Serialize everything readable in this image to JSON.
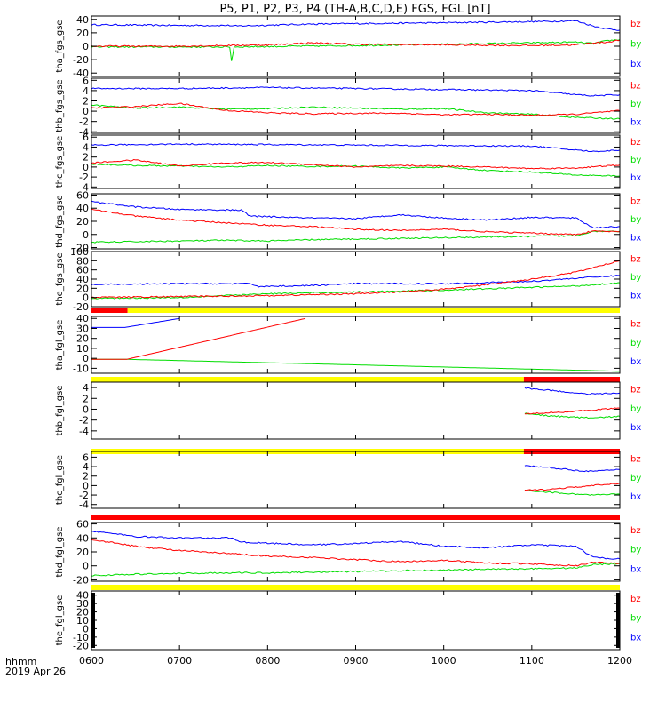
{
  "title": "P5, P1, P2, P3, P4 (TH-A,B,C,D,E) FGS, FGL [nT]",
  "footer": {
    "line1": "hhmm",
    "line2": "2019 Apr 26"
  },
  "colors": {
    "bx": "#0000ff",
    "by": "#00dd00",
    "bz": "#ff0000",
    "bar_yellow": "#ffff00",
    "bar_red": "#ff0000",
    "bar_black": "#000000"
  },
  "chart_data": [
    {
      "type": "line",
      "ylabel": "tha_fgs_gse",
      "ylim": [
        -45,
        45
      ],
      "yticks": [
        -40,
        -20,
        0,
        20,
        40
      ],
      "legend": [
        "bz",
        "by",
        "bx"
      ],
      "series": [
        {
          "name": "bx",
          "x": [
            600,
            700,
            757,
            760,
            850,
            1000,
            1120,
            1150,
            1160,
            1170,
            1185,
            1200
          ],
          "values": [
            32,
            31,
            31,
            30,
            33,
            35,
            37,
            38,
            34,
            30,
            26,
            24
          ]
        },
        {
          "name": "by",
          "x": [
            600,
            700,
            757,
            759,
            762,
            900,
            1000,
            1100,
            1150,
            1170,
            1185,
            1200
          ],
          "values": [
            -1,
            -1,
            -1,
            -22,
            -1,
            1,
            3,
            5,
            6,
            4,
            8,
            10
          ]
        },
        {
          "name": "bz",
          "x": [
            600,
            700,
            800,
            850,
            900,
            1000,
            1100,
            1150,
            1170,
            1185,
            1200
          ],
          "values": [
            0,
            0,
            2,
            5,
            3,
            2,
            1,
            2,
            5,
            6,
            9
          ]
        }
      ]
    },
    {
      "type": "line",
      "ylabel": "thb_fgs_gse",
      "ylim": [
        -4.3,
        6.4
      ],
      "yticks": [
        -4,
        -2,
        0,
        2,
        4,
        6
      ],
      "legend": [
        "bz",
        "by",
        "bx"
      ],
      "series": [
        {
          "name": "bx",
          "x": [
            600,
            700,
            800,
            900,
            1000,
            1100,
            1150,
            1170,
            1200
          ],
          "values": [
            4.4,
            4.4,
            4.6,
            4.4,
            4.2,
            4.0,
            3.2,
            3.0,
            3.2
          ]
        },
        {
          "name": "by",
          "x": [
            600,
            650,
            700,
            750,
            800,
            850,
            900,
            950,
            1000,
            1050,
            1100,
            1150,
            1200
          ],
          "values": [
            1.2,
            0.6,
            0.8,
            0.4,
            0.5,
            0.8,
            0.6,
            0.4,
            0.5,
            -0.3,
            -0.6,
            -1.2,
            -1.5
          ]
        },
        {
          "name": "bz",
          "x": [
            600,
            650,
            700,
            750,
            800,
            850,
            900,
            950,
            1000,
            1050,
            1100,
            1150,
            1200
          ],
          "values": [
            0.6,
            0.9,
            1.5,
            0.2,
            -0.3,
            -0.5,
            -0.4,
            -0.4,
            -0.7,
            -0.6,
            -0.8,
            -0.6,
            0.1
          ]
        }
      ]
    },
    {
      "type": "line",
      "ylabel": "thc_fgs_gse",
      "ylim": [
        -4.3,
        6.4
      ],
      "yticks": [
        -4,
        -2,
        0,
        2,
        4,
        6
      ],
      "legend": [
        "bz",
        "by",
        "bx"
      ],
      "series": [
        {
          "name": "bx",
          "x": [
            600,
            700,
            800,
            900,
            1000,
            1100,
            1150,
            1170,
            1200
          ],
          "values": [
            4.4,
            4.6,
            4.5,
            4.4,
            4.3,
            4.2,
            3.4,
            3.1,
            3.4
          ]
        },
        {
          "name": "by",
          "x": [
            600,
            650,
            700,
            750,
            800,
            850,
            900,
            950,
            1000,
            1050,
            1100,
            1150,
            1200
          ],
          "values": [
            0.6,
            0.3,
            0.2,
            0.0,
            0.3,
            0.1,
            0.2,
            -0.2,
            0.0,
            -0.7,
            -1.0,
            -1.6,
            -1.8
          ]
        },
        {
          "name": "bz",
          "x": [
            600,
            650,
            700,
            750,
            800,
            850,
            900,
            950,
            1000,
            1050,
            1100,
            1150,
            1200
          ],
          "values": [
            0.8,
            1.4,
            0.2,
            0.8,
            0.9,
            0.5,
            0.0,
            0.3,
            0.2,
            0.0,
            -0.3,
            -0.2,
            0.4
          ]
        }
      ]
    },
    {
      "type": "line",
      "ylabel": "thd_fgs_gse",
      "ylim": [
        -22,
        62
      ],
      "yticks": [
        -20,
        0,
        20,
        40,
        60
      ],
      "legend": [
        "bz",
        "by",
        "bx"
      ],
      "series": [
        {
          "name": "bx",
          "x": [
            600,
            650,
            700,
            770,
            780,
            850,
            900,
            950,
            1000,
            1050,
            1100,
            1150,
            1170,
            1200
          ],
          "values": [
            50,
            42,
            38,
            37,
            28,
            25,
            24,
            30,
            25,
            22,
            26,
            25,
            10,
            12
          ]
        },
        {
          "name": "by",
          "x": [
            600,
            650,
            700,
            750,
            800,
            850,
            900,
            950,
            1000,
            1050,
            1100,
            1150,
            1170,
            1200
          ],
          "values": [
            -12,
            -11,
            -10,
            -9,
            -10,
            -8,
            -7,
            -6,
            -5,
            -4,
            -3,
            -2,
            5,
            5
          ]
        },
        {
          "name": "bz",
          "x": [
            600,
            650,
            700,
            750,
            800,
            850,
            900,
            950,
            1000,
            1050,
            1100,
            1150,
            1170,
            1200
          ],
          "values": [
            38,
            28,
            22,
            18,
            14,
            12,
            8,
            6,
            8,
            4,
            2,
            0,
            5,
            4
          ]
        }
      ]
    },
    {
      "type": "line",
      "ylabel": "the_fgs_gse",
      "ylim": [
        -20,
        100
      ],
      "yticks": [
        -20,
        0,
        20,
        40,
        60,
        80,
        100
      ],
      "legend": [
        "bz",
        "by",
        "bx"
      ],
      "series": [
        {
          "name": "bx",
          "x": [
            600,
            700,
            780,
            790,
            850,
            900,
            1000,
            1100,
            1150,
            1200
          ],
          "values": [
            28,
            30,
            30,
            24,
            26,
            30,
            30,
            35,
            42,
            48
          ]
        },
        {
          "name": "by",
          "x": [
            600,
            700,
            800,
            900,
            1000,
            1100,
            1150,
            1200
          ],
          "values": [
            -2,
            0,
            8,
            12,
            16,
            22,
            25,
            32
          ]
        },
        {
          "name": "bz",
          "x": [
            600,
            700,
            800,
            900,
            950,
            1000,
            1050,
            1100,
            1150,
            1200
          ],
          "values": [
            0,
            2,
            4,
            8,
            12,
            18,
            28,
            40,
            55,
            80
          ]
        }
      ],
      "state_bar": [
        {
          "from": 600,
          "to": 641,
          "color": "red"
        },
        {
          "from": 641,
          "to": 1200,
          "color": "yellow"
        }
      ]
    },
    {
      "type": "line",
      "ylabel": "tha_fgl_gse",
      "ylim": [
        -15,
        42
      ],
      "yticks": [
        -10,
        0,
        10,
        20,
        30,
        40
      ],
      "legend": [
        "bz",
        "by",
        "bx"
      ],
      "series": [
        {
          "name": "bx",
          "x": [
            600,
            638,
            700
          ],
          "values": [
            31,
            31,
            40
          ]
        },
        {
          "name": "by",
          "x": [
            600,
            640,
            1200
          ],
          "values": [
            -1,
            -1,
            -13
          ]
        },
        {
          "name": "bz",
          "x": [
            600,
            640,
            843
          ],
          "values": [
            -1,
            -1,
            40
          ]
        }
      ],
      "state_bar": [
        {
          "from": 600,
          "to": 1091,
          "color": "yellow"
        },
        {
          "from": 1091,
          "to": 1200,
          "color": "red"
        }
      ]
    },
    {
      "type": "line",
      "ylabel": "thb_fgl_gse",
      "ylim": [
        -5.5,
        5
      ],
      "yticks": [
        -4,
        -2,
        0,
        2,
        4
      ],
      "legend": [
        "bz",
        "by",
        "bx"
      ],
      "series": [
        {
          "name": "bx",
          "x": [
            1092,
            1120,
            1150,
            1170,
            1200
          ],
          "values": [
            3.9,
            3.5,
            3.0,
            2.8,
            3.0
          ]
        },
        {
          "name": "by",
          "x": [
            1092,
            1120,
            1150,
            1170,
            1200
          ],
          "values": [
            -0.8,
            -1.2,
            -1.5,
            -1.6,
            -1.3
          ]
        },
        {
          "name": "bz",
          "x": [
            1092,
            1120,
            1150,
            1170,
            1200
          ],
          "values": [
            -0.9,
            -0.6,
            -0.4,
            -0.1,
            0.2
          ]
        }
      ],
      "state_bar": [
        {
          "from": 600,
          "to": 1091,
          "color": "yellow"
        },
        {
          "from": 1091,
          "to": 1200,
          "color": "red"
        }
      ]
    },
    {
      "type": "line",
      "ylabel": "thc_fgl_gse",
      "ylim": [
        -4.8,
        7.2
      ],
      "yticks": [
        -4,
        -2,
        0,
        2,
        4,
        6
      ],
      "legend": [
        "bz",
        "by",
        "bx"
      ],
      "series": [
        {
          "name": "bx",
          "x": [
            1092,
            1120,
            1150,
            1170,
            1200
          ],
          "values": [
            4.2,
            3.8,
            3.2,
            3.0,
            3.4
          ]
        },
        {
          "name": "by",
          "x": [
            1092,
            1120,
            1150,
            1170,
            1200
          ],
          "values": [
            -1.0,
            -1.4,
            -1.8,
            -2.0,
            -1.8
          ]
        },
        {
          "name": "bz",
          "x": [
            1092,
            1120,
            1150,
            1170,
            1200
          ],
          "values": [
            -1.0,
            -0.8,
            -0.3,
            0.0,
            0.5
          ]
        }
      ],
      "state_bar": [
        {
          "from": 600,
          "to": 1200,
          "color": "red"
        }
      ]
    },
    {
      "type": "line",
      "ylabel": "thd_fgl_gse",
      "ylim": [
        -22,
        62
      ],
      "yticks": [
        -20,
        0,
        20,
        40,
        60
      ],
      "legend": [
        "bz",
        "by",
        "bx"
      ],
      "series": [
        {
          "name": "bx",
          "x": [
            600,
            650,
            700,
            760,
            770,
            850,
            900,
            950,
            1000,
            1050,
            1100,
            1150,
            1170,
            1200
          ],
          "values": [
            50,
            42,
            40,
            40,
            34,
            30,
            32,
            35,
            28,
            26,
            30,
            28,
            12,
            10
          ]
        },
        {
          "name": "by",
          "x": [
            600,
            650,
            700,
            750,
            800,
            850,
            900,
            950,
            1000,
            1050,
            1100,
            1150,
            1170,
            1200
          ],
          "values": [
            -14,
            -12,
            -11,
            -10,
            -10,
            -9,
            -8,
            -7,
            -6,
            -5,
            -4,
            -3,
            2,
            3
          ]
        },
        {
          "name": "bz",
          "x": [
            600,
            650,
            700,
            750,
            800,
            850,
            900,
            950,
            1000,
            1050,
            1100,
            1150,
            1170,
            1200
          ],
          "values": [
            38,
            28,
            22,
            18,
            14,
            12,
            9,
            6,
            8,
            4,
            3,
            0,
            5,
            4
          ]
        }
      ],
      "state_bar": [
        {
          "from": 600,
          "to": 1200,
          "color": "yellow"
        }
      ]
    },
    {
      "type": "line",
      "ylabel": "the_fgl_gse",
      "ylim": [
        -25,
        45
      ],
      "yticks": [
        -20,
        -10,
        0,
        10,
        20,
        30,
        40
      ],
      "legend": [
        "bz",
        "by",
        "bx"
      ],
      "series": []
    }
  ],
  "x_axis": {
    "range": [
      600,
      1200
    ],
    "ticks": [
      600,
      700,
      800,
      900,
      1000,
      1100,
      1200
    ],
    "tick_labels": [
      "0600",
      "0700",
      "0800",
      "0900",
      "1000",
      "1100",
      "1200"
    ]
  }
}
